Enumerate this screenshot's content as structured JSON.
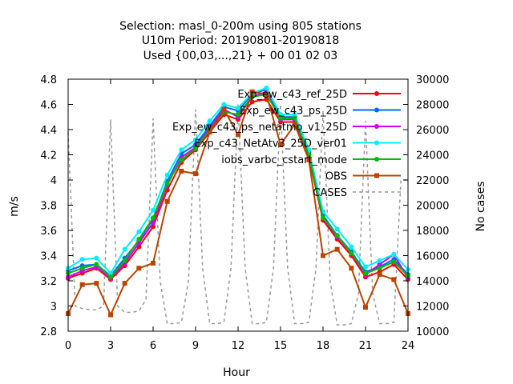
{
  "chart_data": {
    "type": "line",
    "title_lines": [
      "Selection: masl_0-200m using   805 stations",
      "U10m   Period: 20190801-20190818",
      "Used {00,03,...,21} + 00 01 02 03"
    ],
    "xlabel": "Hour",
    "ylabel": "m/s",
    "y2label": "No cases",
    "xlim": [
      0,
      24
    ],
    "ylim": [
      2.8,
      4.8
    ],
    "y2lim": [
      10000,
      30000
    ],
    "xticks": [
      "0",
      "3",
      "6",
      "9",
      "12",
      "15",
      "18",
      "21",
      "24"
    ],
    "yticks": [
      "2.8",
      "3",
      "3.2",
      "3.4",
      "3.6",
      "3.8",
      "4",
      "4.2",
      "4.4",
      "4.6",
      "4.8"
    ],
    "y2ticks": [
      "10000",
      "12000",
      "14000",
      "16000",
      "18000",
      "20000",
      "22000",
      "24000",
      "26000",
      "28000",
      "30000"
    ],
    "legend_position": "top-right",
    "grid": false,
    "x": [
      0,
      1,
      2,
      3,
      4,
      5,
      6,
      7,
      8,
      9,
      10,
      11,
      12,
      13,
      14,
      15,
      16,
      17,
      18,
      19,
      20,
      21,
      22,
      23,
      24
    ],
    "series": [
      {
        "name": "Exp_ew_c43_ref_25D",
        "color": "#ff0000",
        "marker": "circle",
        "values": [
          3.22,
          3.26,
          3.3,
          3.21,
          3.32,
          3.47,
          3.63,
          3.92,
          4.14,
          4.24,
          4.38,
          4.52,
          4.48,
          4.62,
          4.64,
          4.46,
          4.46,
          4.18,
          3.68,
          3.53,
          3.4,
          3.23,
          3.27,
          3.33,
          3.21
        ]
      },
      {
        "name": "Exp_ew_c43_ps_25D",
        "color": "#0066ff",
        "marker": "circle",
        "values": [
          3.28,
          3.32,
          3.33,
          3.24,
          3.38,
          3.52,
          3.69,
          3.99,
          4.21,
          4.28,
          4.43,
          4.58,
          4.55,
          4.68,
          4.72,
          4.5,
          4.5,
          4.22,
          3.72,
          3.56,
          3.43,
          3.27,
          3.31,
          3.37,
          3.25
        ]
      },
      {
        "name": "Exp_ew_c43_ps_netatmo_v1_25D",
        "color": "#cc00ff",
        "marker": "circle",
        "values": [
          3.23,
          3.28,
          3.31,
          3.22,
          3.34,
          3.5,
          3.66,
          3.96,
          4.18,
          4.26,
          4.41,
          4.56,
          4.5,
          4.66,
          4.7,
          4.48,
          4.48,
          4.2,
          3.7,
          3.55,
          3.42,
          3.25,
          3.33,
          3.41,
          3.22
        ]
      },
      {
        "name": "Exp_c43_NetAtv3_25D_ver01",
        "color": "#00eeff",
        "marker": "circle",
        "values": [
          3.3,
          3.37,
          3.38,
          3.26,
          3.45,
          3.59,
          3.76,
          4.04,
          4.24,
          4.32,
          4.47,
          4.6,
          4.57,
          4.69,
          4.73,
          4.52,
          4.52,
          4.24,
          3.75,
          3.61,
          3.47,
          3.31,
          3.36,
          3.41,
          3.29
        ]
      },
      {
        "name": "iobs_varbc_cstart_mode",
        "color": "#00bb00",
        "marker": "circle",
        "values": [
          3.26,
          3.3,
          3.33,
          3.23,
          3.36,
          3.53,
          3.7,
          3.97,
          4.16,
          4.25,
          4.4,
          4.54,
          4.52,
          4.66,
          4.68,
          4.49,
          4.49,
          4.2,
          3.7,
          3.56,
          3.42,
          3.26,
          3.3,
          3.35,
          3.24
        ]
      },
      {
        "name": "OBS",
        "color": "#bb4400",
        "marker": "square",
        "values": [
          2.94,
          3.17,
          3.18,
          2.93,
          3.18,
          3.3,
          3.34,
          3.83,
          4.07,
          4.05,
          4.38,
          4.56,
          4.36,
          4.7,
          4.68,
          4.28,
          4.44,
          4.16,
          3.4,
          3.45,
          3.3,
          2.99,
          3.25,
          3.21,
          2.94
        ]
      }
    ],
    "cases_series": {
      "name": "CASES",
      "color": "#999999",
      "style": "dashed",
      "axis": "y2",
      "x": [
        0,
        0.5,
        1,
        1.5,
        2,
        2.5,
        3,
        3.5,
        4,
        4.5,
        5,
        5.5,
        6,
        6.5,
        7,
        7.5,
        8,
        8.5,
        9,
        9.5,
        10,
        10.5,
        11,
        11.5,
        12,
        12.5,
        13,
        13.5,
        14,
        14.5,
        15,
        15.5,
        16,
        16.5,
        17,
        17.5,
        18,
        18.5,
        19,
        19.5,
        20,
        20.5,
        21,
        21.5,
        22,
        22.5,
        23,
        23.5,
        24
      ],
      "values": [
        25800,
        12000,
        11800,
        11700,
        11700,
        12000,
        26800,
        12000,
        11500,
        11500,
        11600,
        12500,
        26900,
        14000,
        10600,
        10600,
        10700,
        14000,
        27600,
        15000,
        10600,
        10600,
        10700,
        15000,
        28000,
        15000,
        10600,
        10600,
        10700,
        15000,
        28000,
        15000,
        10600,
        10600,
        10700,
        15000,
        27500,
        14000,
        10500,
        10500,
        10600,
        13000,
        26700,
        13000,
        10600,
        10600,
        10700,
        22000,
        22000
      ]
    }
  }
}
